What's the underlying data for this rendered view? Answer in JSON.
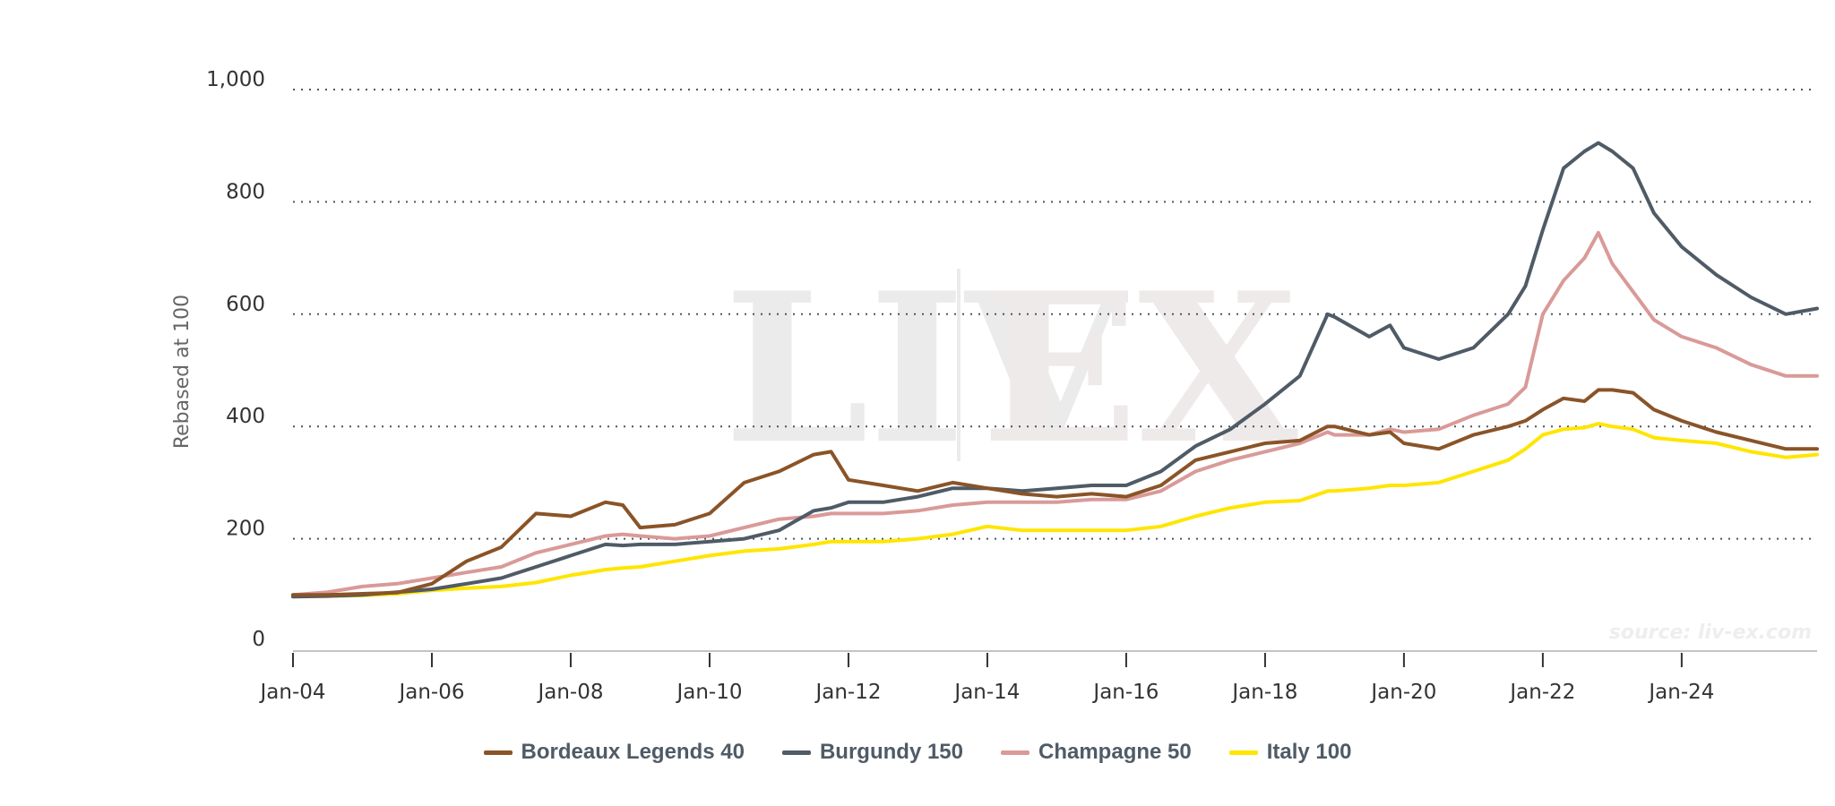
{
  "chart_data": {
    "type": "line",
    "title": "",
    "xlabel": "",
    "ylabel": "Rebased at 100",
    "ylim": [
      0,
      1000
    ],
    "yticks": [
      0,
      200,
      400,
      600,
      800,
      1000
    ],
    "ytick_labels": [
      "0",
      "200",
      "400",
      "600",
      "800",
      "1,000"
    ],
    "xlim": [
      2004.0,
      2025.95
    ],
    "xticks": [
      2004,
      2006,
      2008,
      2010,
      2012,
      2014,
      2016,
      2018,
      2020,
      2022,
      2024
    ],
    "xtick_labels": [
      "Jan-04",
      "Jan-06",
      "Jan-08",
      "Jan-10",
      "Jan-12",
      "Jan-14",
      "Jan-16",
      "Jan-18",
      "Jan-20",
      "Jan-22",
      "Jan-24"
    ],
    "grid": "horizontal-dotted",
    "legend_position": "bottom-center",
    "source_note": "source: liv-ex.com",
    "watermark": {
      "left": "LIV",
      "right": "EX"
    },
    "x": [
      2004.0,
      2004.5,
      2005.0,
      2005.5,
      2006.0,
      2006.5,
      2007.0,
      2007.5,
      2008.0,
      2008.5,
      2008.75,
      2009.0,
      2009.5,
      2010.0,
      2010.5,
      2011.0,
      2011.5,
      2011.75,
      2012.0,
      2012.5,
      2013.0,
      2013.5,
      2014.0,
      2014.5,
      2015.0,
      2015.5,
      2016.0,
      2016.5,
      2017.0,
      2017.5,
      2018.0,
      2018.5,
      2018.9,
      2019.0,
      2019.5,
      2019.8,
      2020.0,
      2020.5,
      2021.0,
      2021.5,
      2021.75,
      2022.0,
      2022.3,
      2022.6,
      2022.8,
      2023.0,
      2023.3,
      2023.6,
      2024.0,
      2024.5,
      2025.0,
      2025.5,
      2025.95
    ],
    "series": [
      {
        "name": "Bordeaux Legends 40",
        "color": "#8a5428",
        "values": [
          100,
          100,
          102,
          104,
          120,
          160,
          185,
          245,
          240,
          265,
          260,
          220,
          225,
          245,
          300,
          320,
          350,
          355,
          305,
          295,
          285,
          300,
          290,
          280,
          275,
          280,
          275,
          295,
          340,
          355,
          370,
          375,
          400,
          400,
          385,
          390,
          370,
          360,
          385,
          400,
          410,
          430,
          450,
          445,
          465,
          465,
          460,
          430,
          410,
          390,
          375,
          360,
          360
        ]
      },
      {
        "name": "Burgundy 150",
        "color": "#4f5b66",
        "values": [
          97,
          98,
          100,
          105,
          110,
          120,
          130,
          150,
          170,
          190,
          188,
          190,
          190,
          195,
          200,
          215,
          250,
          255,
          265,
          265,
          275,
          290,
          290,
          285,
          290,
          295,
          295,
          320,
          365,
          395,
          440,
          490,
          600,
          595,
          560,
          580,
          540,
          520,
          540,
          600,
          650,
          750,
          860,
          890,
          905,
          890,
          860,
          780,
          720,
          670,
          630,
          600,
          610
        ]
      },
      {
        "name": "Champagne 50",
        "color": "#d99a98",
        "values": [
          100,
          105,
          115,
          120,
          130,
          140,
          150,
          175,
          190,
          205,
          208,
          205,
          200,
          205,
          220,
          235,
          240,
          245,
          245,
          245,
          250,
          260,
          265,
          265,
          265,
          270,
          270,
          285,
          320,
          340,
          355,
          370,
          390,
          385,
          385,
          395,
          390,
          395,
          420,
          440,
          470,
          600,
          660,
          700,
          745,
          690,
          640,
          590,
          560,
          540,
          510,
          490,
          490
        ]
      },
      {
        "name": "Italy 100",
        "color": "#ffe500",
        "values": [
          98,
          98,
          99,
          102,
          108,
          112,
          115,
          122,
          135,
          145,
          148,
          150,
          160,
          170,
          178,
          182,
          190,
          195,
          195,
          195,
          200,
          208,
          222,
          215,
          215,
          215,
          215,
          222,
          240,
          255,
          265,
          268,
          285,
          285,
          290,
          295,
          295,
          300,
          320,
          340,
          360,
          385,
          395,
          398,
          405,
          400,
          395,
          380,
          375,
          370,
          355,
          345,
          350
        ]
      }
    ]
  }
}
